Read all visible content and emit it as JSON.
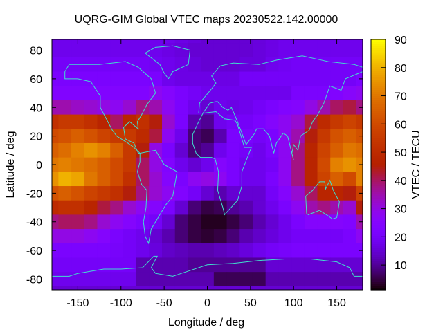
{
  "chart_data": {
    "type": "heatmap",
    "title": "UQRG-GIM Global VTEC maps 20230522.142.00000",
    "xlabel": "Longitude / deg",
    "ylabel": "Latitude / deg",
    "colorbar_label": "VTEC / TECU",
    "xlim": [
      -180,
      180
    ],
    "ylim": [
      -87.5,
      87.5
    ],
    "cblim": [
      1.2,
      90
    ],
    "xticks": [
      -150,
      -100,
      -50,
      0,
      50,
      100,
      150
    ],
    "yticks": [
      80,
      60,
      40,
      20,
      0,
      -20,
      -40,
      -60,
      -80
    ],
    "cbticks": [
      10,
      20,
      30,
      40,
      50,
      60,
      70,
      80,
      90
    ],
    "colormap": "gnuplot black-purple-red-yellow (rgbformulae 7,5,15)",
    "coastline_color": "#40e0d0",
    "grid": false,
    "lon": [
      -180,
      -165,
      -150,
      -135,
      -120,
      -105,
      -90,
      -75,
      -60,
      -45,
      -30,
      -15,
      0,
      15,
      30,
      45,
      60,
      75,
      90,
      105,
      120,
      135,
      150,
      165,
      180
    ],
    "lat": [
      90,
      80,
      70,
      60,
      50,
      40,
      30,
      20,
      10,
      0,
      -10,
      -20,
      -30,
      -40,
      -50,
      -60,
      -70,
      -80,
      -90
    ],
    "values": [
      [
        18,
        18,
        18,
        18,
        18,
        18,
        18,
        18,
        18,
        18,
        17,
        16,
        15,
        15,
        15,
        15,
        16,
        17,
        18,
        18,
        18,
        18,
        18,
        18,
        18
      ],
      [
        18,
        18,
        18,
        18,
        18,
        18,
        18,
        18,
        18,
        17,
        16,
        15,
        15,
        15,
        15,
        15,
        16,
        17,
        18,
        18,
        18,
        18,
        18,
        18,
        18
      ],
      [
        20,
        20,
        20,
        20,
        20,
        20,
        20,
        20,
        19,
        18,
        17,
        16,
        15,
        15,
        15,
        16,
        16,
        18,
        19,
        20,
        20,
        20,
        20,
        20,
        20
      ],
      [
        22,
        22,
        22,
        22,
        22,
        22,
        22,
        22,
        22,
        18,
        17,
        17,
        17,
        17,
        17,
        20,
        20,
        20,
        20,
        20,
        20,
        20,
        20,
        20,
        22
      ],
      [
        24,
        24,
        24,
        24,
        24,
        24,
        24,
        24,
        28,
        25,
        22,
        20,
        18,
        18,
        18,
        18,
        18,
        18,
        18,
        22,
        22,
        22,
        24,
        26,
        28
      ],
      [
        35,
        35,
        33,
        32,
        30,
        28,
        32,
        38,
        35,
        28,
        22,
        18,
        15,
        18,
        17,
        18,
        20,
        22,
        24,
        25,
        30,
        35,
        40,
        42,
        38
      ],
      [
        52,
        55,
        55,
        52,
        48,
        40,
        48,
        52,
        45,
        32,
        22,
        12,
        10,
        18,
        20,
        20,
        22,
        25,
        28,
        32,
        42,
        50,
        55,
        58,
        55
      ],
      [
        60,
        62,
        65,
        62,
        58,
        55,
        55,
        50,
        42,
        28,
        18,
        8,
        6,
        12,
        22,
        22,
        20,
        22,
        28,
        35,
        45,
        55,
        62,
        65,
        62
      ],
      [
        65,
        68,
        72,
        75,
        72,
        65,
        55,
        45,
        30,
        22,
        15,
        8,
        10,
        18,
        22,
        20,
        18,
        22,
        28,
        38,
        48,
        58,
        65,
        70,
        68
      ],
      [
        70,
        72,
        70,
        68,
        65,
        60,
        55,
        40,
        30,
        24,
        18,
        15,
        18,
        25,
        22,
        18,
        18,
        20,
        28,
        38,
        48,
        60,
        72,
        75,
        72
      ],
      [
        75,
        80,
        78,
        70,
        65,
        60,
        52,
        40,
        32,
        25,
        22,
        28,
        30,
        28,
        22,
        18,
        18,
        22,
        28,
        38,
        48,
        58,
        65,
        60,
        72
      ],
      [
        62,
        65,
        62,
        58,
        55,
        52,
        45,
        38,
        32,
        28,
        24,
        20,
        15,
        12,
        15,
        15,
        15,
        20,
        25,
        32,
        40,
        48,
        48,
        45,
        58
      ],
      [
        50,
        52,
        52,
        48,
        42,
        38,
        32,
        28,
        25,
        22,
        15,
        8,
        5,
        6,
        10,
        12,
        15,
        18,
        22,
        28,
        35,
        38,
        35,
        32,
        45
      ],
      [
        38,
        40,
        40,
        38,
        32,
        28,
        25,
        22,
        20,
        15,
        8,
        5,
        3,
        3,
        5,
        8,
        12,
        15,
        18,
        22,
        25,
        25,
        25,
        24,
        35
      ],
      [
        30,
        30,
        30,
        28,
        25,
        22,
        20,
        18,
        15,
        12,
        8,
        5,
        4,
        5,
        8,
        12,
        14,
        16,
        18,
        20,
        20,
        20,
        20,
        22,
        28
      ],
      [
        22,
        22,
        22,
        22,
        22,
        21,
        20,
        18,
        16,
        14,
        13,
        12,
        12,
        13,
        14,
        16,
        18,
        20,
        21,
        22,
        22,
        22,
        22,
        22,
        22
      ],
      [
        20,
        20,
        20,
        20,
        20,
        20,
        20,
        12,
        12,
        12,
        12,
        10,
        10,
        10,
        10,
        10,
        10,
        15,
        15,
        15,
        15,
        15,
        15,
        15,
        15
      ],
      [
        18,
        18,
        18,
        18,
        18,
        18,
        18,
        12,
        12,
        12,
        12,
        12,
        12,
        6,
        6,
        6,
        6,
        12,
        12,
        12,
        12,
        12,
        12,
        12,
        12
      ],
      [
        15,
        15,
        15,
        15,
        15,
        15,
        15,
        15,
        15,
        15,
        15,
        15,
        15,
        15,
        15,
        15,
        15,
        15,
        15,
        15,
        15,
        15,
        15,
        15,
        15
      ]
    ]
  }
}
